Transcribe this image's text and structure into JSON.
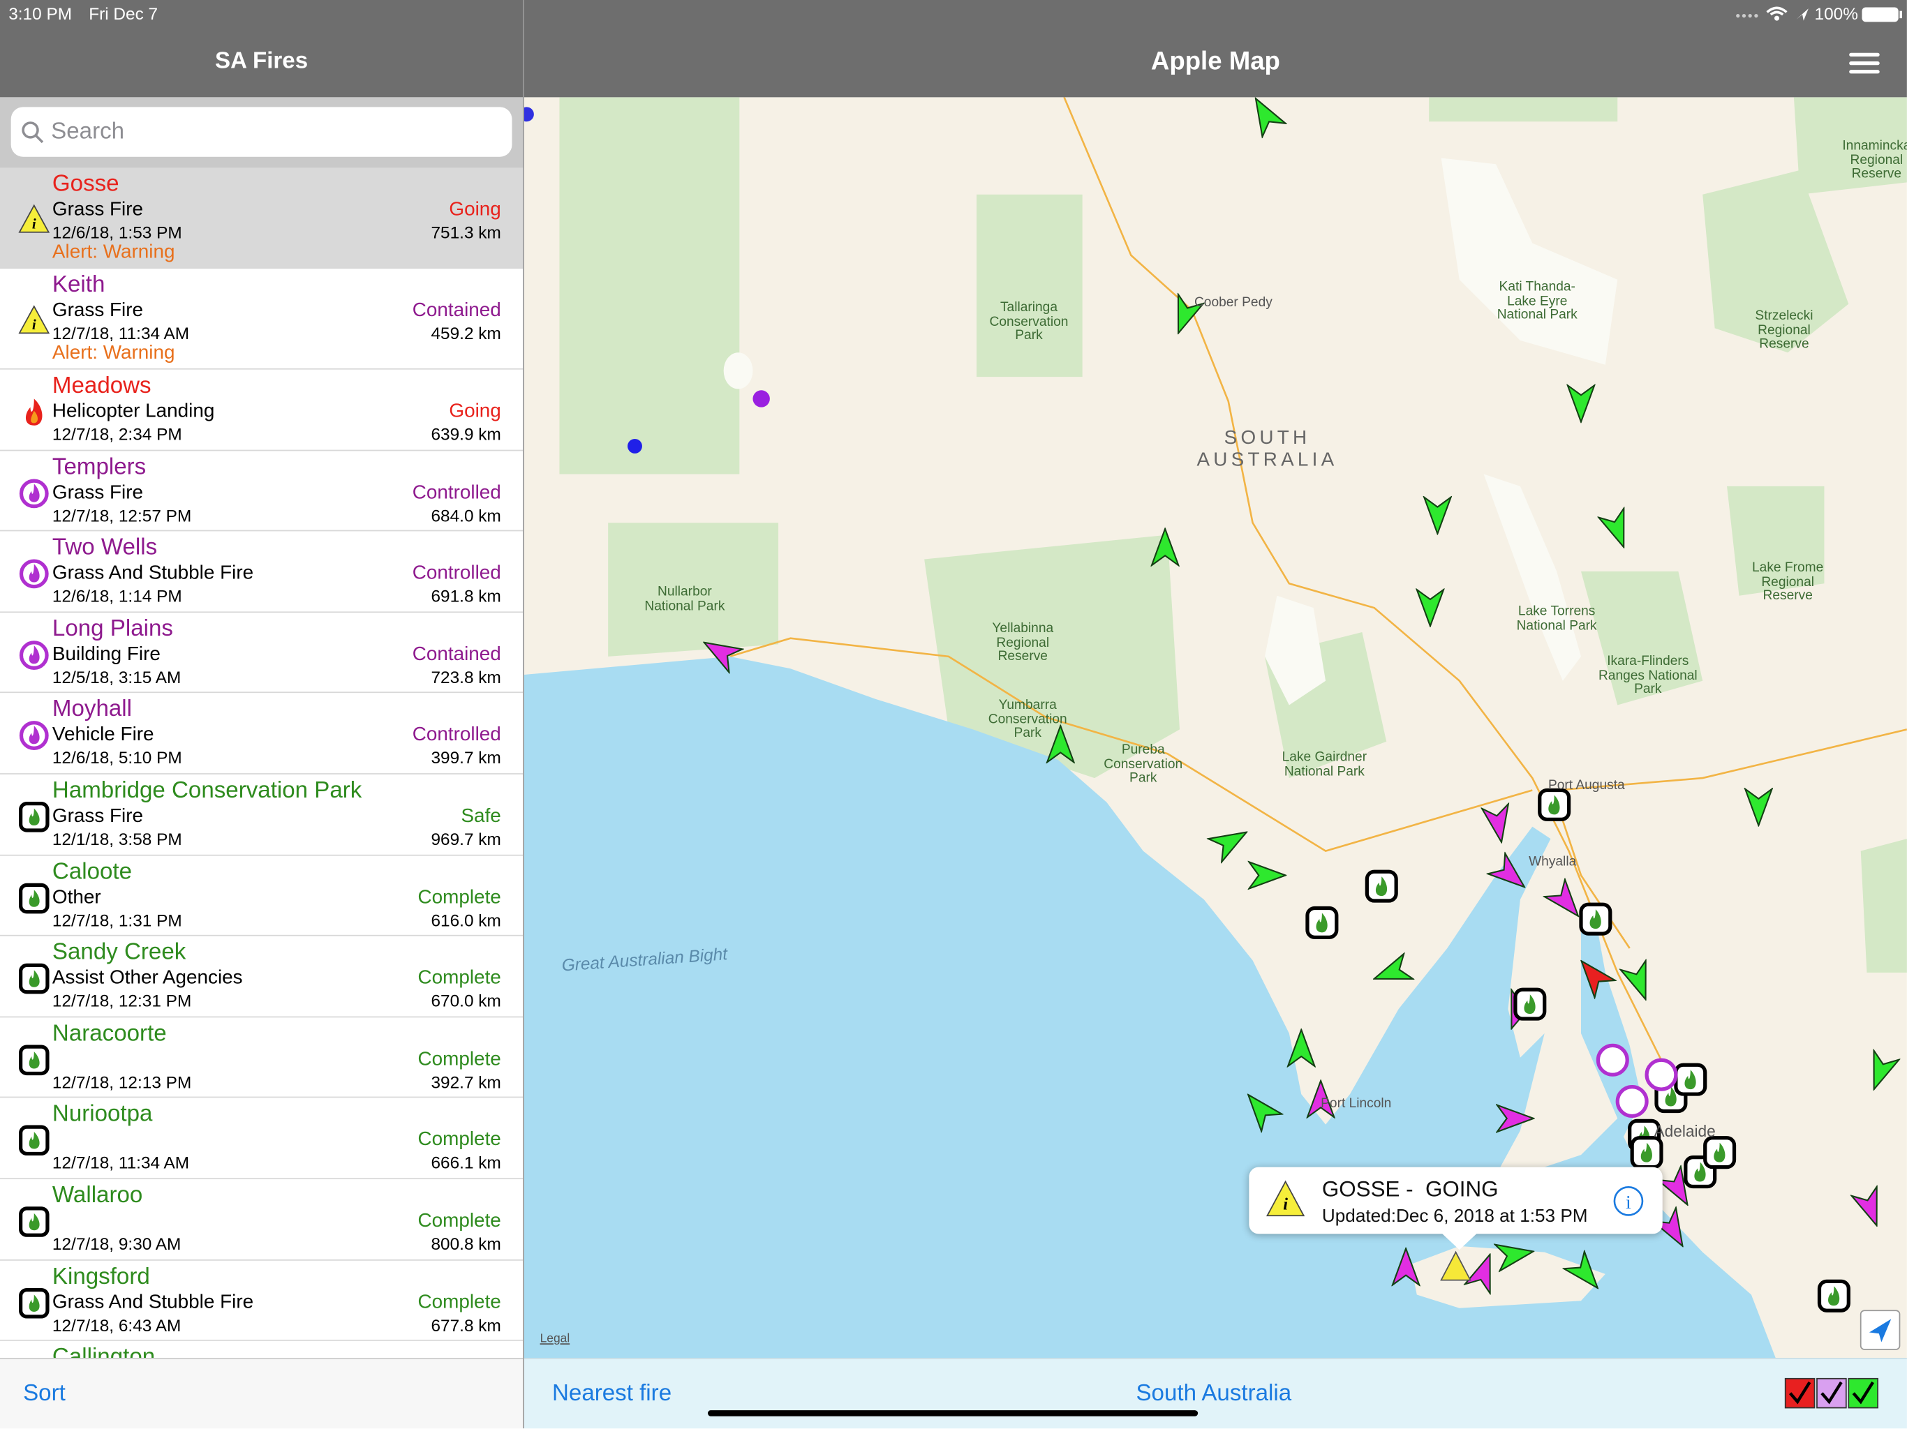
{
  "status_bar": {
    "time": "3:10 PM",
    "date": "Fri Dec 7",
    "battery": "100%"
  },
  "sidebar": {
    "title": "SA Fires",
    "search_placeholder": "Search",
    "sort": "Sort",
    "items": [
      {
        "name": "Gosse",
        "type": "Grass Fire",
        "updated": "12/6/18, 1:53 PM",
        "alert": "Alert: Warning",
        "status": "Going",
        "distance": "751.3 km",
        "color": "#e8221c",
        "icon": "warning"
      },
      {
        "name": "Keith",
        "type": "Grass Fire",
        "updated": "12/7/18, 11:34 AM",
        "alert": "Alert: Warning",
        "status": "Contained",
        "distance": "459.2 km",
        "color": "#8e1a8e",
        "icon": "warning"
      },
      {
        "name": "Meadows",
        "type": "Helicopter Landing",
        "updated": "12/7/18, 2:34 PM",
        "status": "Going",
        "distance": "639.9 km",
        "color": "#e8221c",
        "icon": "fire"
      },
      {
        "name": "Templers",
        "type": "Grass Fire",
        "updated": "12/7/18, 12:57 PM",
        "status": "Controlled",
        "distance": "684.0 km",
        "color": "#8e1a8e",
        "icon": "controlled"
      },
      {
        "name": "Two Wells",
        "type": "Grass And Stubble Fire",
        "updated": "12/6/18, 1:14 PM",
        "status": "Controlled",
        "distance": "691.8 km",
        "color": "#8e1a8e",
        "icon": "controlled"
      },
      {
        "name": "Long Plains",
        "type": "Building Fire",
        "updated": "12/5/18, 3:15 AM",
        "status": "Contained",
        "distance": "723.8 km",
        "color": "#8e1a8e",
        "icon": "controlled"
      },
      {
        "name": "Moyhall",
        "type": "Vehicle Fire",
        "updated": "12/6/18, 5:10 PM",
        "status": "Controlled",
        "distance": "399.7 km",
        "color": "#8e1a8e",
        "icon": "controlled"
      },
      {
        "name": "Hambridge Conservation Park",
        "type": "Grass Fire",
        "updated": "12/1/18, 3:58 PM",
        "status": "Safe",
        "distance": "969.7 km",
        "color": "#2e8b1e",
        "icon": "safe"
      },
      {
        "name": "Caloote",
        "type": "Other",
        "updated": "12/7/18, 1:31 PM",
        "status": "Complete",
        "distance": "616.0 km",
        "color": "#2e8b1e",
        "icon": "safe"
      },
      {
        "name": "Sandy Creek",
        "type": "Assist Other Agencies",
        "updated": "12/7/18, 12:31 PM",
        "status": "Complete",
        "distance": "670.0 km",
        "color": "#2e8b1e",
        "icon": "safe"
      },
      {
        "name": "Naracoorte",
        "updated": "12/7/18, 12:13 PM",
        "status": "Complete",
        "distance": "392.7 km",
        "color": "#2e8b1e",
        "icon": "safe"
      },
      {
        "name": "Nuriootpa",
        "updated": "12/7/18, 11:34 AM",
        "status": "Complete",
        "distance": "666.1 km",
        "color": "#2e8b1e",
        "icon": "safe"
      },
      {
        "name": "Wallaroo",
        "updated": "12/7/18, 9:30 AM",
        "status": "Complete",
        "distance": "800.8 km",
        "color": "#2e8b1e",
        "icon": "safe"
      },
      {
        "name": "Kingsford",
        "type": "Grass And Stubble Fire",
        "updated": "12/7/18, 6:43 AM",
        "status": "Complete",
        "distance": "677.8 km",
        "color": "#2e8b1e",
        "icon": "safe"
      },
      {
        "name": "Callington",
        "color": "#2e8b1e"
      }
    ]
  },
  "map": {
    "title": "Apple Map",
    "labels": [
      "SOUTH AUSTRALIA",
      "Coober Pedy",
      "Tallaringa Conservation Park",
      "Kati Thanda-Lake Eyre National Park",
      "Strzelecki Regional Reserve",
      "Innamincka Regional Reserve",
      "Nullarbor National Park",
      "Yellabinna Regional Reserve",
      "Yumbarra Conservation Park",
      "Pureba Conservation Park",
      "Lake Gairdner National Park",
      "Lake Torrens National Park",
      "Ikara-Flinders Ranges National Park",
      "Lake Frome Regional Reserve",
      "Port Augusta",
      "Whyalla",
      "Great Australian Bight",
      "Port Lincoln",
      "Adelaide"
    ],
    "callout": {
      "title": "GOSSE -  GOING",
      "updated": "Updated:Dec 6, 2018 at 1:53 PM"
    },
    "legal": "Legal",
    "footer": {
      "nearest": "Nearest fire",
      "region": "South Australia"
    }
  }
}
